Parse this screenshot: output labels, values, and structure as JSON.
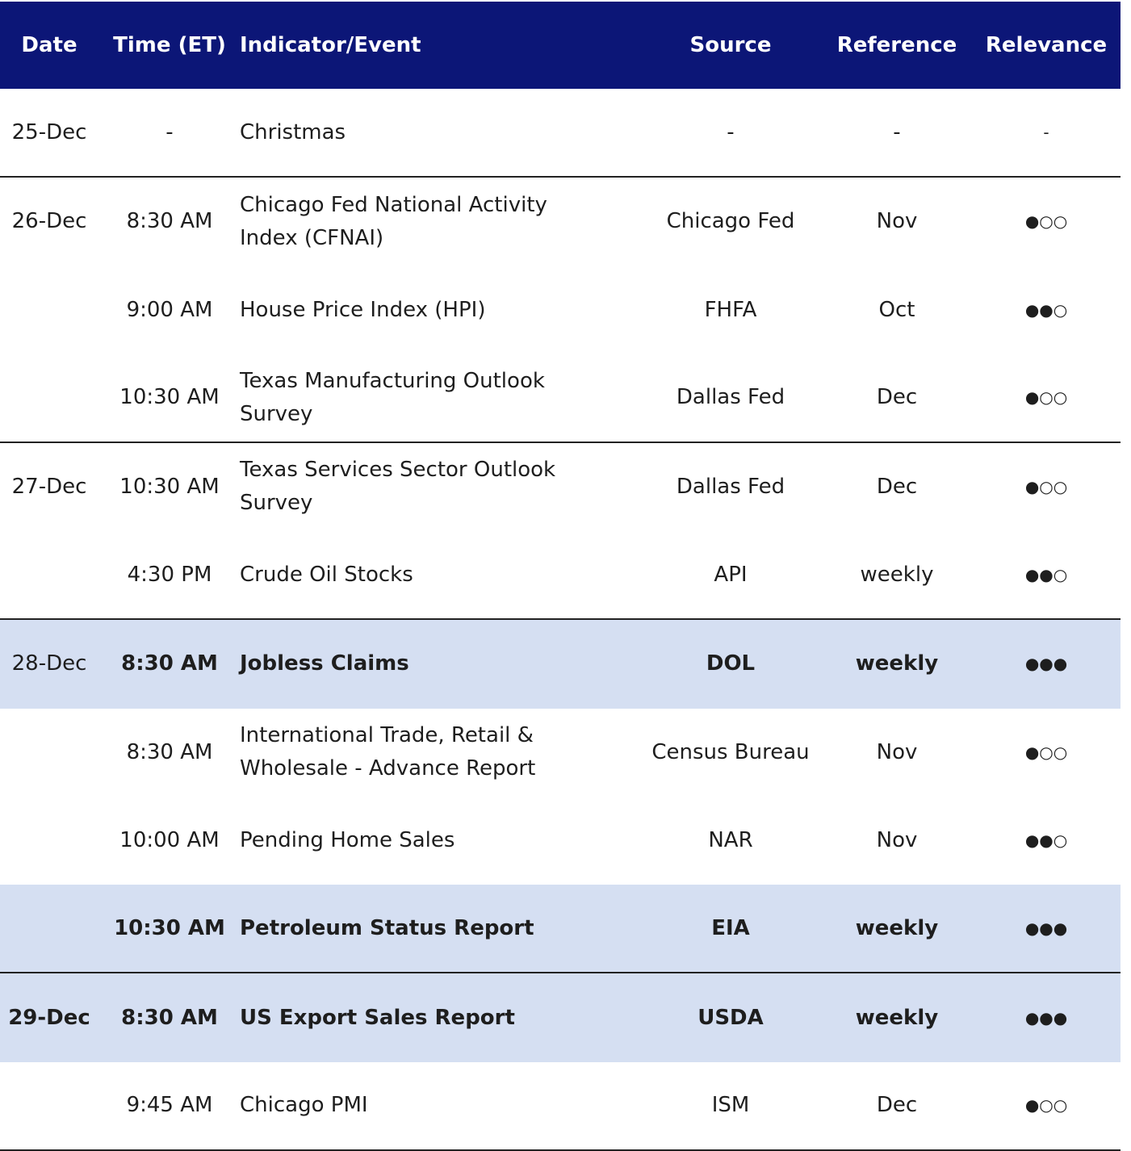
{
  "header": {
    "date": "Date",
    "time": "Time (ET)",
    "event": "Indicator/Event",
    "source": "Source",
    "reference": "Reference",
    "relevance": "Relevance"
  },
  "table": {
    "rows": [
      {
        "date": "25-Dec",
        "time": "-",
        "event": "Christmas",
        "source": "-",
        "reference": "-",
        "relevance": "-",
        "group_end": true
      },
      {
        "date": "26-Dec",
        "time": "8:30 AM",
        "event": "Chicago Fed National Activity Index (CFNAI)",
        "source": "Chicago Fed",
        "reference": "Nov",
        "relevance": "●○○"
      },
      {
        "time": "9:00 AM",
        "event": "House Price Index (HPI)",
        "source": "FHFA",
        "reference": "Oct",
        "relevance": "●●○"
      },
      {
        "time": "10:30 AM",
        "event": "Texas Manufacturing Outlook Survey",
        "source": "Dallas Fed",
        "reference": "Dec",
        "relevance": "●○○",
        "group_end": true
      },
      {
        "date": "27-Dec",
        "time": "10:30 AM",
        "event": "Texas Services Sector Outlook Survey",
        "source": "Dallas Fed",
        "reference": "Dec",
        "relevance": "●○○"
      },
      {
        "time": "4:30 PM",
        "event": "Crude Oil Stocks",
        "source": "API",
        "reference": "weekly",
        "relevance": "●●○",
        "group_end": true
      },
      {
        "date": "28-Dec",
        "time": "8:30 AM",
        "event": "Jobless Claims",
        "source": "DOL",
        "reference": "weekly",
        "relevance": "●●●",
        "highlight": true
      },
      {
        "time": "8:30 AM",
        "event": "International Trade, Retail & Wholesale - Advance Report",
        "source": "Census Bureau",
        "reference": "Nov",
        "relevance": "●○○"
      },
      {
        "time": "10:00 AM",
        "event": "Pending Home Sales",
        "source": "NAR",
        "reference": "Nov",
        "relevance": "●●○"
      },
      {
        "time": "10:30 AM",
        "event": "Petroleum Status Report",
        "source": "EIA",
        "reference": "weekly",
        "relevance": "●●●",
        "highlight": true,
        "group_end": true
      },
      {
        "date": "29-Dec",
        "time": "8:30 AM",
        "event": "US Export Sales Report",
        "source": "USDA",
        "reference": "weekly",
        "relevance": "●●●",
        "highlight": true,
        "date_bold": true
      },
      {
        "time": "9:45 AM",
        "event": "Chicago PMI",
        "source": "ISM",
        "reference": "Dec",
        "relevance": "●○○",
        "group_end": true
      }
    ]
  }
}
